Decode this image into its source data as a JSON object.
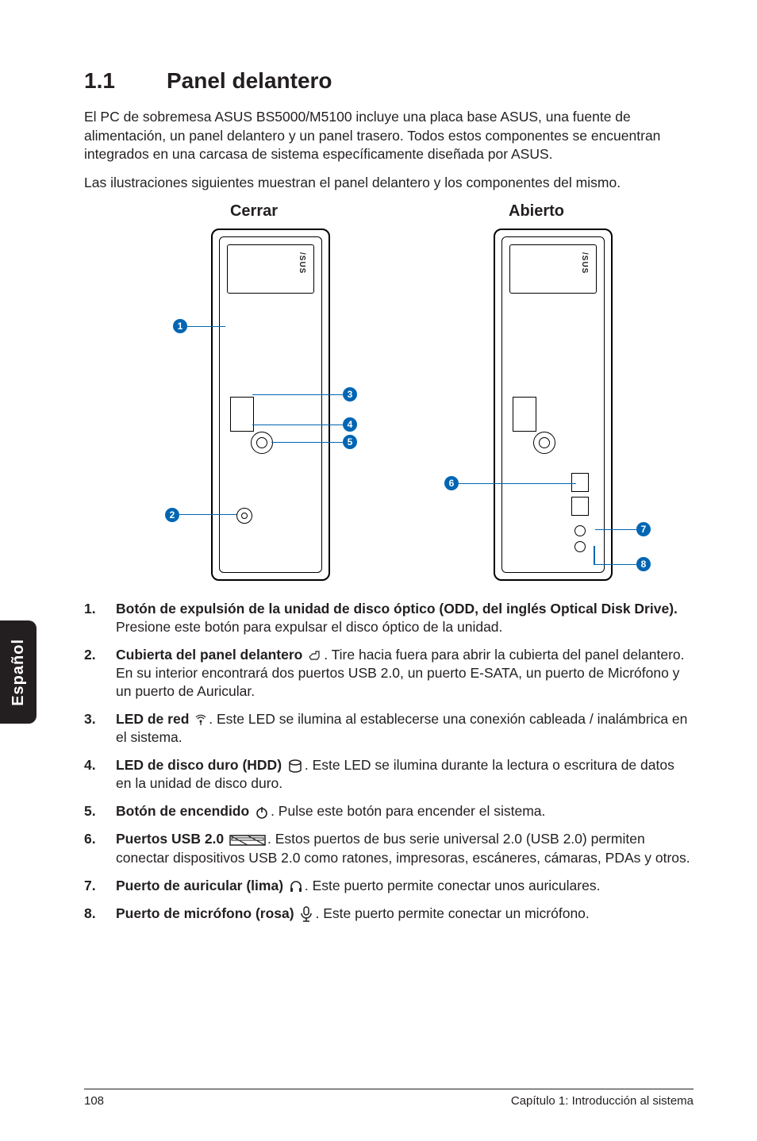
{
  "heading": {
    "number": "1.1",
    "title": "Panel delantero"
  },
  "intro": {
    "p1": "El PC de sobremesa ASUS BS5000/M5100 incluye una placa base ASUS, una fuente de alimentación, un panel delantero y un panel trasero. Todos estos componentes se encuentran integrados en una carcasa de sistema específicamente diseñada por ASUS.",
    "p2": "Las ilustraciones siguientes muestran el panel delantero y los componentes del mismo."
  },
  "diagram": {
    "left_label": "Cerrar",
    "right_label": "Abierto",
    "brand": "/SUS",
    "callouts_closed": [
      "1",
      "2",
      "3",
      "4",
      "5"
    ],
    "callouts_open": [
      "6",
      "7",
      "8"
    ],
    "colors": {
      "callout_bg": "#0066b3",
      "callout_text": "#ffffff",
      "stroke": "#000000"
    }
  },
  "items": [
    {
      "n": "1.",
      "bold": "Botón de expulsión de la unidad de disco óptico (ODD, del inglés Optical Disk Drive).",
      "rest": " Presione este botón para expulsar el disco óptico de la unidad.",
      "icon": null
    },
    {
      "n": "2.",
      "bold": "Cubierta del panel delantero ",
      "rest": ". Tire hacia fuera para abrir la cubierta del panel delantero. En su interior encontrará dos puertos USB 2.0, un puerto E-SATA, un puerto de Micrófono y un puerto de Auricular.",
      "icon": "hand"
    },
    {
      "n": "3.",
      "bold": "LED de red ",
      "rest": ". Este LED se ilumina al establecerse una conexión cableada / inalámbrica en el sistema.",
      "icon": "antenna"
    },
    {
      "n": "4.",
      "bold": "LED de disco duro (HDD) ",
      "rest": ". Este LED se ilumina durante la lectura o escritura de datos en la unidad de disco duro.",
      "icon": "cylinder"
    },
    {
      "n": "5.",
      "bold": "Botón de encendido ",
      "rest": ". Pulse este botón para encender el sistema.",
      "icon": "power"
    },
    {
      "n": "6.",
      "bold": "Puertos USB 2.0 ",
      "rest": ". Estos puertos de bus serie universal 2.0 (USB 2.0) permiten conectar dispositivos USB 2.0 como ratones, impresoras, escáneres, cámaras, PDAs y otros.",
      "icon": "usb"
    },
    {
      "n": "7.",
      "bold": "Puerto de auricular (lima) ",
      "rest": ". Este puerto permite conectar unos auriculares.",
      "icon": "headphone"
    },
    {
      "n": "8.",
      "bold": "Puerto de micrófono (rosa) ",
      "rest": ". Este puerto permite conectar un micrófono.",
      "icon": "mic"
    }
  ],
  "sidebar": "Español",
  "footer": {
    "page": "108",
    "chapter": "Capítulo 1: Introducción al sistema"
  },
  "style": {
    "page_bg": "#ffffff",
    "text_color": "#231f20",
    "body_fontsize": 17.5,
    "h1_fontsize": 28,
    "diagram_label_fontsize": 20,
    "callout_diameter": 18,
    "sidebar_bg": "#231f20",
    "sidebar_text": "#ffffff",
    "footer_fontsize": 15,
    "rule_color": "#231f20"
  }
}
